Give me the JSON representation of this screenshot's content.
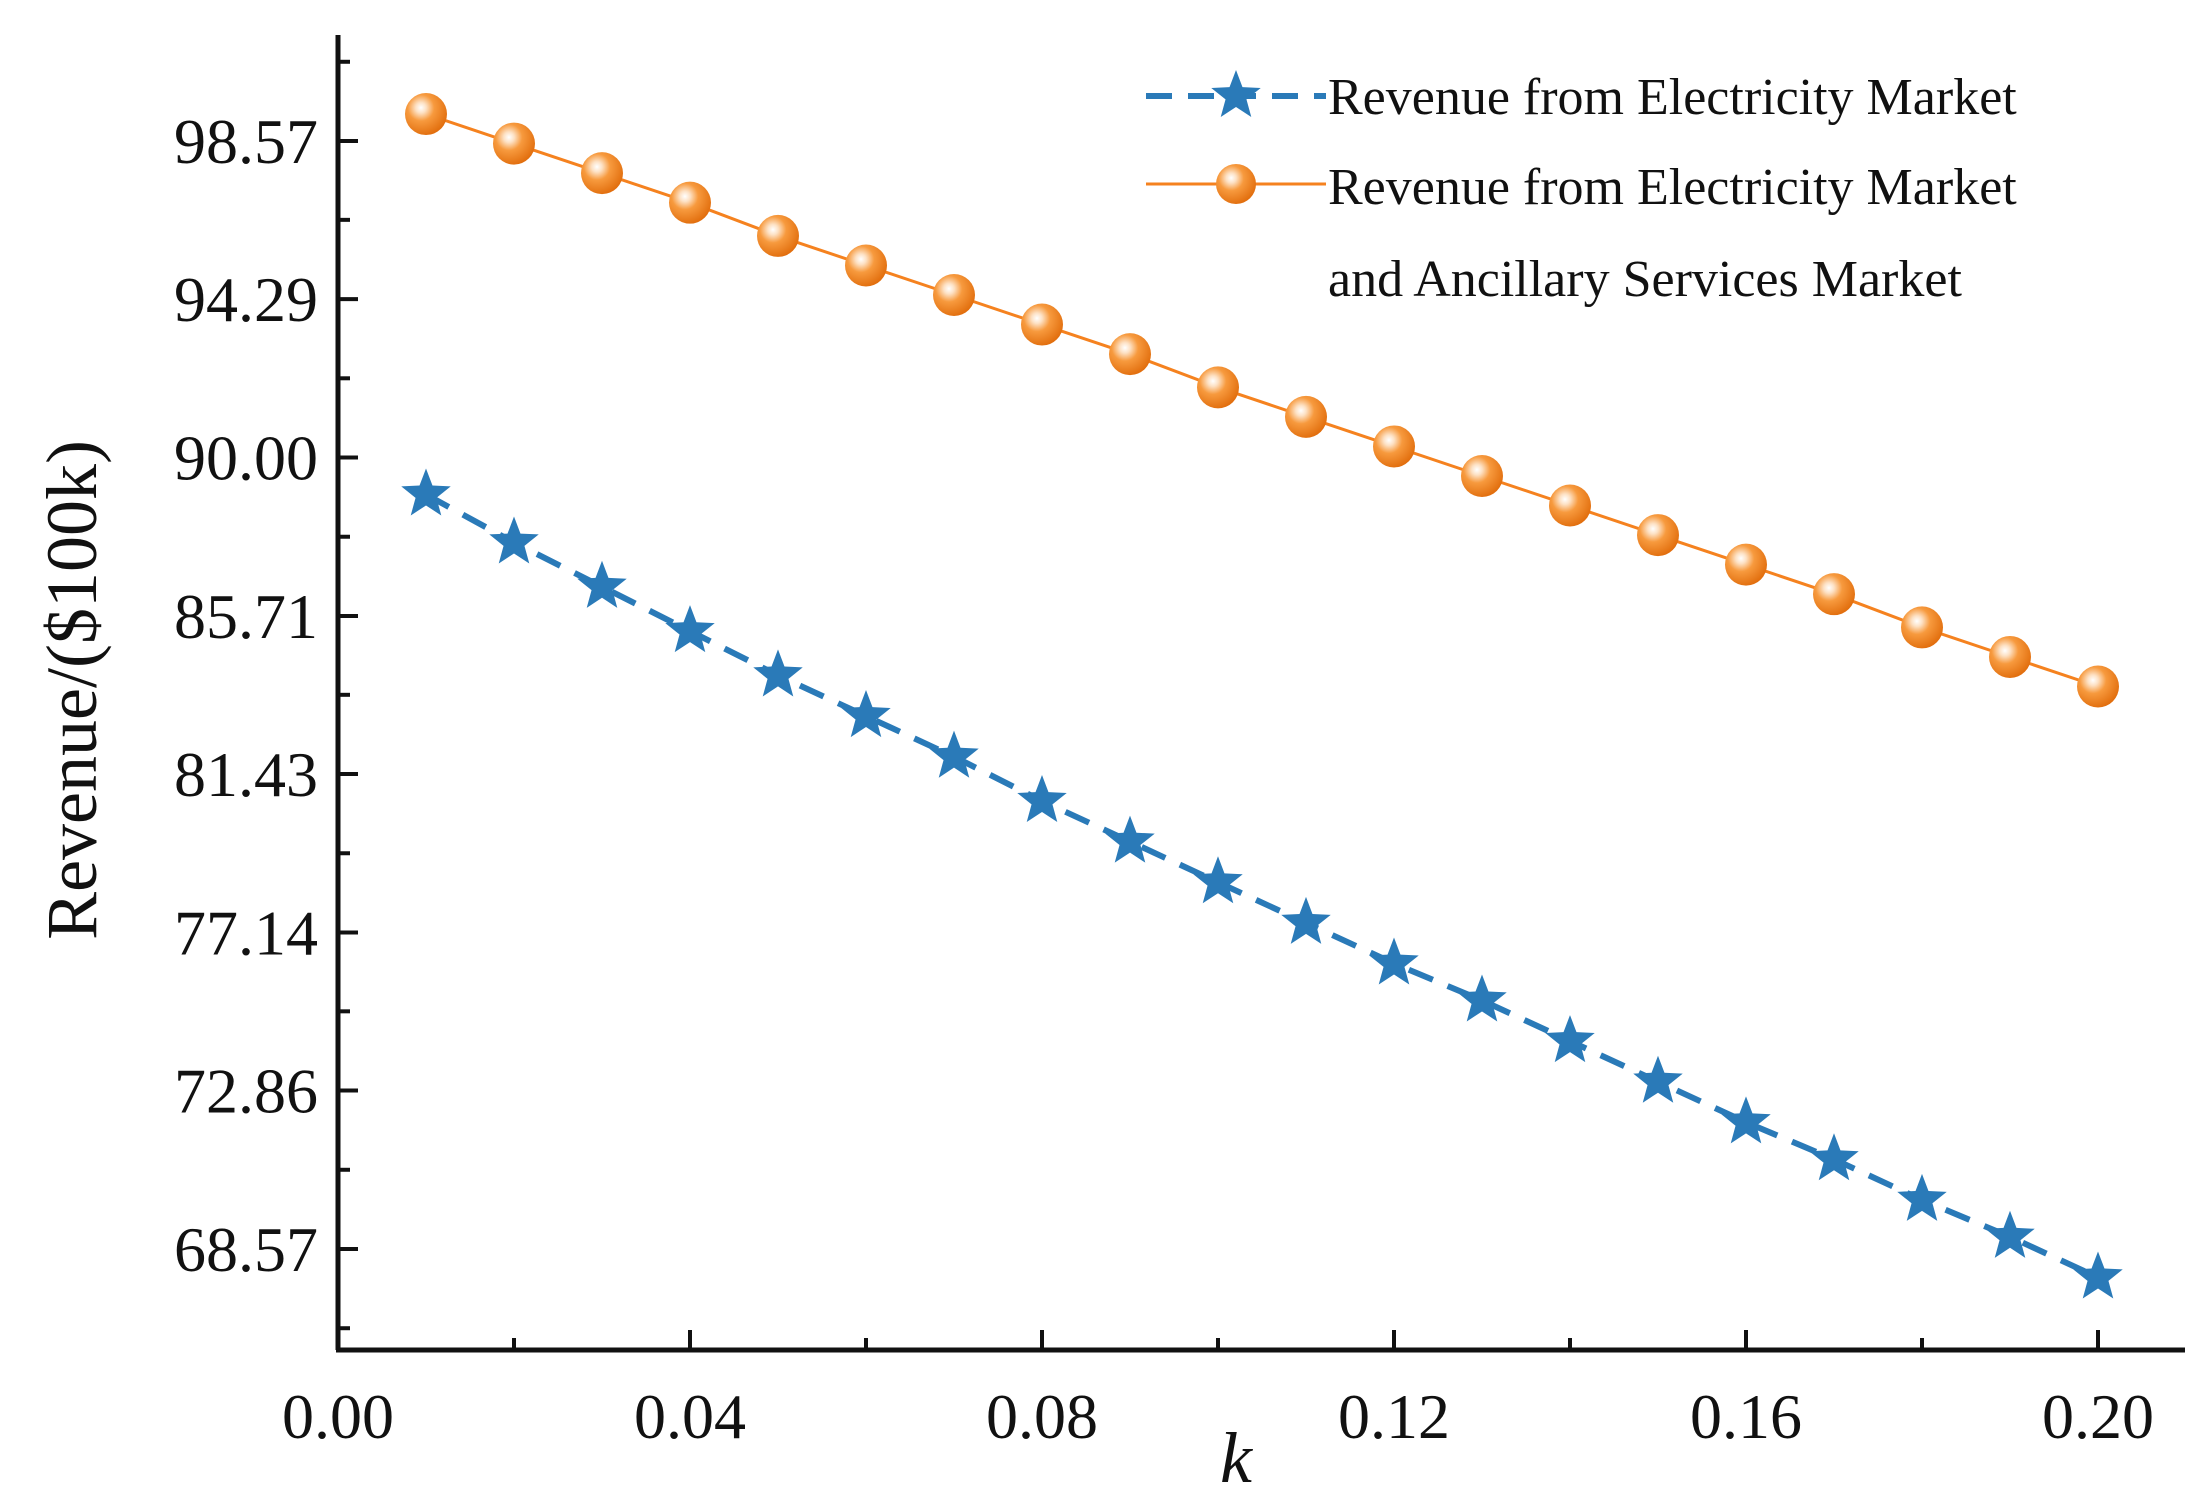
{
  "chart_data": {
    "type": "line",
    "title": "",
    "xlabel": "k",
    "ylabel": "Revenue/($100k)",
    "xlim": [
      0.0,
      0.21
    ],
    "ylim": [
      65.3,
      102.2
    ],
    "x_ticks": [
      0.0,
      0.04,
      0.08,
      0.12,
      0.16,
      0.2
    ],
    "x_tick_labels": [
      "0.00",
      "0.04",
      "0.08",
      "0.12",
      "0.16",
      "0.20"
    ],
    "y_ticks": [
      68.57,
      72.86,
      77.14,
      81.43,
      85.71,
      90.0,
      94.29,
      98.57
    ],
    "y_tick_labels": [
      "68.57",
      "72.86",
      "77.14",
      "81.43",
      "85.71",
      "90.00",
      "94.29",
      "98.57"
    ],
    "grid": false,
    "legend_position": "top-right",
    "x": [
      0.01,
      0.02,
      0.03,
      0.04,
      0.05,
      0.06,
      0.07,
      0.08,
      0.09,
      0.1,
      0.11,
      0.12,
      0.13,
      0.14,
      0.15,
      0.16,
      0.17,
      0.18,
      0.19,
      0.2
    ],
    "series": [
      {
        "name": "Revenue from Electricity Market",
        "legend_lines": [
          "Revenue from Electricity Market"
        ],
        "color": "#2a7ab8",
        "marker": "star",
        "line_style": "dashed",
        "values": [
          89.0,
          87.7,
          86.5,
          85.3,
          84.1,
          83.0,
          81.9,
          80.7,
          79.6,
          78.5,
          77.4,
          76.3,
          75.3,
          74.2,
          73.1,
          72.0,
          71.0,
          69.9,
          68.9,
          67.8
        ]
      },
      {
        "name": "Revenue from Electricity Market and Ancillary Services Market",
        "legend_lines": [
          "Revenue from Electricity Market",
          "and Ancillary Services Market"
        ],
        "color": "#f5821f",
        "marker": "sphere",
        "line_style": "solid",
        "values": [
          99.3,
          98.5,
          97.7,
          96.9,
          96.0,
          95.2,
          94.4,
          93.6,
          92.8,
          91.9,
          91.1,
          90.3,
          89.5,
          88.7,
          87.9,
          87.1,
          86.3,
          85.4,
          84.6,
          83.8
        ]
      }
    ]
  }
}
